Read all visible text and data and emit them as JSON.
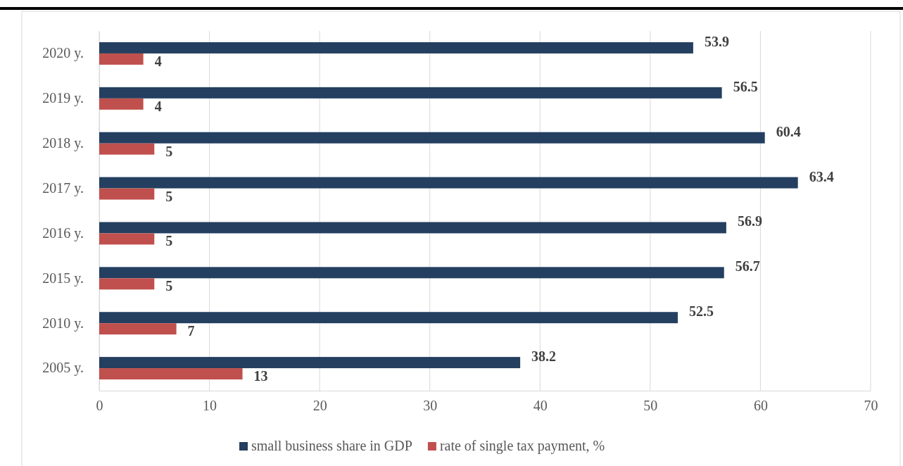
{
  "chart_data": {
    "type": "bar",
    "orientation": "horizontal",
    "categories": [
      "2020 y.",
      "2019 y.",
      "2018 y.",
      "2017 y.",
      "2016 y.",
      "2015 y.",
      "2010 y.",
      "2005 y."
    ],
    "series": [
      {
        "name": "small business share in GDP",
        "color": "#243f60",
        "values": [
          53.9,
          56.5,
          60.4,
          63.4,
          56.9,
          56.7,
          52.5,
          38.2
        ]
      },
      {
        "name": "rate of single tax payment, %",
        "color": "#c0504d",
        "values": [
          4,
          4,
          5,
          5,
          5,
          5,
          7,
          13
        ]
      }
    ],
    "xlim": [
      0,
      70
    ],
    "xticks": [
      0,
      10,
      20,
      30,
      40,
      50,
      60,
      70
    ],
    "grid": "x",
    "legend": "bottom",
    "data_labels": true
  }
}
